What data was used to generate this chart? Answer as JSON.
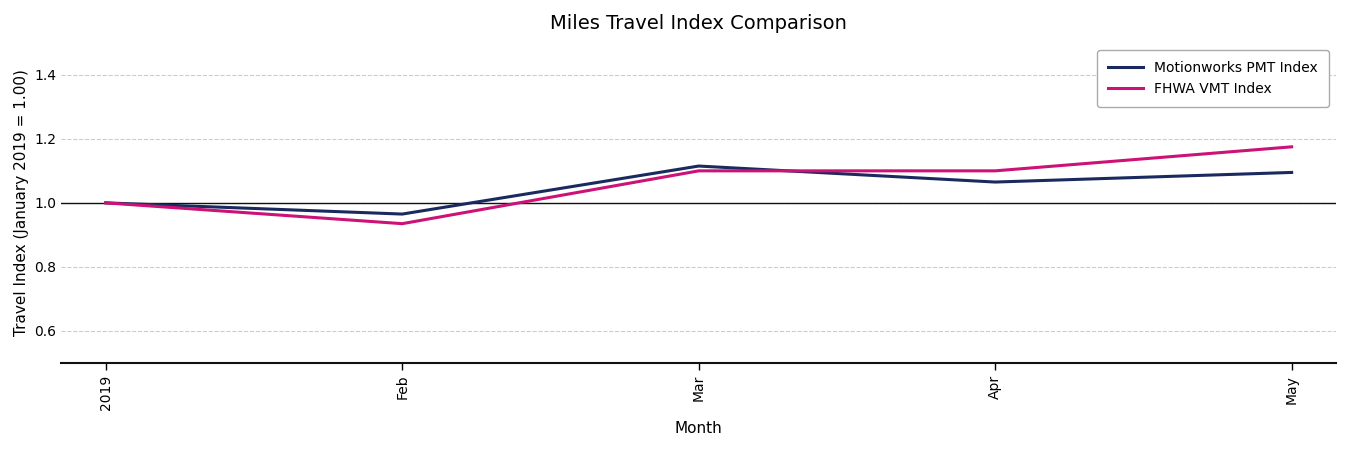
{
  "title": "Miles Travel Index Comparison",
  "xlabel": "Month",
  "ylabel": "Travel Index (January 2019 = 1.00)",
  "x_tick_labels": [
    "2019",
    "Feb",
    "Mar",
    "Apr",
    "May"
  ],
  "x_tick_positions": [
    0,
    1,
    2,
    3,
    4
  ],
  "ylim": [
    0.5,
    1.5
  ],
  "yticks": [
    0.6,
    0.8,
    1.0,
    1.2,
    1.4
  ],
  "pmt_values": [
    1.0,
    0.965,
    1.115,
    1.065,
    1.095
  ],
  "vmt_values": [
    1.0,
    0.935,
    1.1,
    1.1,
    1.175
  ],
  "pmt_color": "#1a2a5e",
  "vmt_color": "#cc1177",
  "pmt_label": "Motionworks PMT Index",
  "vmt_label": "FHWA VMT Index",
  "line_width": 2.2,
  "background_color": "#ffffff",
  "grid_color": "#cccccc",
  "hline_y": 1.0,
  "hline_color": "#111111",
  "title_fontsize": 14,
  "axis_label_fontsize": 11,
  "tick_fontsize": 10,
  "legend_fontsize": 10
}
